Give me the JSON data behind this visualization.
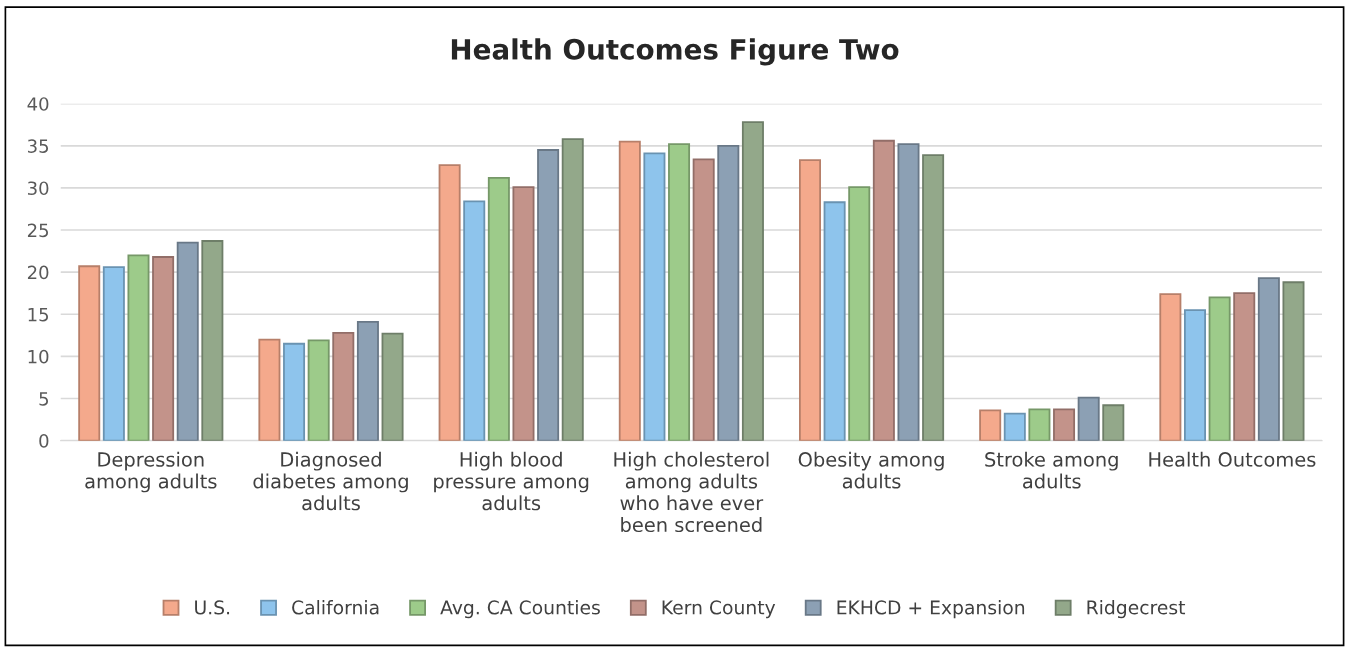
{
  "chart_data": {
    "type": "bar",
    "title": "Health Outcomes Figure Two",
    "categories": [
      "Depression\namong adults",
      "Diagnosed\ndiabetes among\nadults",
      "High blood\npressure among\nadults",
      "High cholesterol\namong adults\nwho have ever\nbeen screened",
      "Obesity among\nadults",
      "Stroke among\nadults",
      "Health Outcomes"
    ],
    "series": [
      {
        "name": "U.S.",
        "color": "#f4a98c",
        "values": [
          20.7,
          12.0,
          32.7,
          35.5,
          33.3,
          3.6,
          17.4
        ]
      },
      {
        "name": "California",
        "color": "#8ec4ec",
        "values": [
          20.6,
          11.5,
          28.4,
          34.1,
          28.3,
          3.2,
          15.5
        ]
      },
      {
        "name": "Avg. CA Counties",
        "color": "#9dcb8a",
        "values": [
          22.0,
          11.9,
          31.2,
          35.2,
          30.1,
          3.7,
          17.0
        ]
      },
      {
        "name": "Kern County",
        "color": "#c3938a",
        "values": [
          21.8,
          12.8,
          30.1,
          33.4,
          35.6,
          3.7,
          17.5
        ]
      },
      {
        "name": "EKHCD + Expansion",
        "color": "#8ca0b4",
        "values": [
          23.5,
          14.1,
          34.5,
          35.0,
          35.2,
          5.1,
          19.3
        ]
      },
      {
        "name": "Ridgecrest",
        "color": "#93a88a",
        "values": [
          23.7,
          12.7,
          35.8,
          37.8,
          33.9,
          4.2,
          18.8
        ]
      }
    ],
    "ylim": [
      0,
      40
    ],
    "yticks": [
      0,
      5,
      10,
      15,
      20,
      25,
      30,
      35,
      40
    ],
    "grid": "y",
    "legend": "bottom"
  }
}
